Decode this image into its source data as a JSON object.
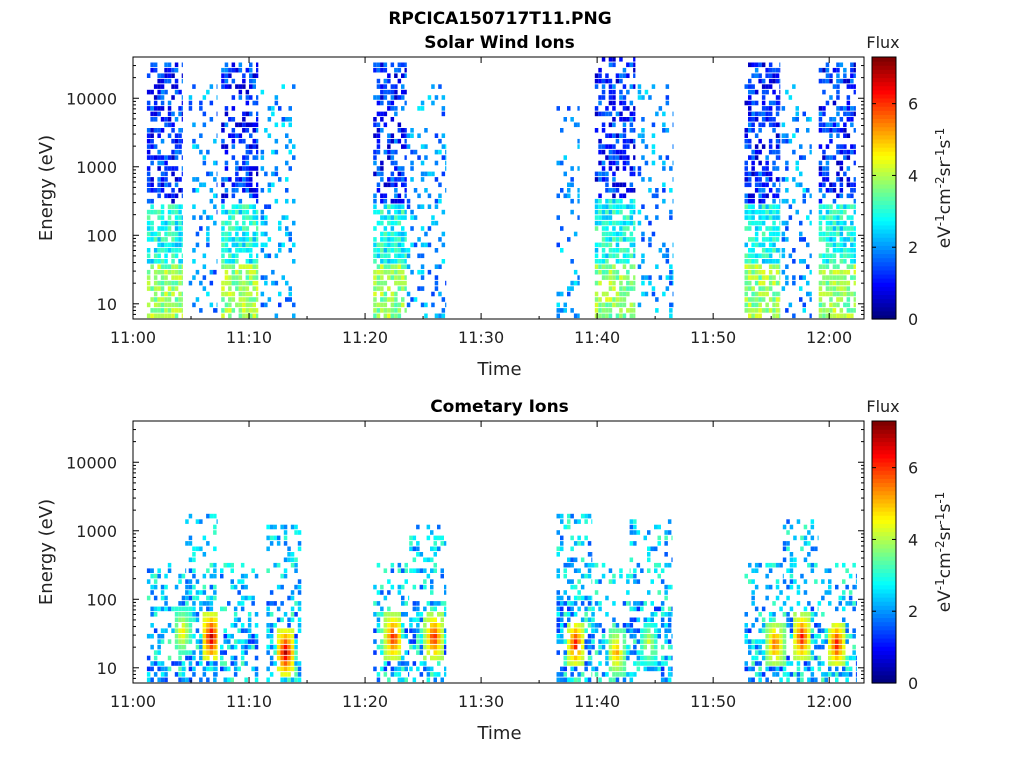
{
  "figure_title": "RPCICA150717T11.PNG",
  "chart_data": [
    {
      "type": "heatmap",
      "title": "Solar Wind Ions",
      "xlabel": "Time",
      "ylabel": "Energy (eV)",
      "y_scale": "log",
      "ylim": [
        6,
        40000
      ],
      "xlim": [
        "11:00",
        "12:03"
      ],
      "x_ticks": [
        "11:00",
        "11:10",
        "11:20",
        "11:30",
        "11:40",
        "11:50",
        "12:00"
      ],
      "y_ticks": [
        "10",
        "100",
        "1000",
        "10000"
      ],
      "colorbar": {
        "title": "Flux",
        "label": "eV-1cm-2sr-1s-1",
        "ticks": [
          "0",
          "2",
          "4",
          "6"
        ],
        "range": [
          0,
          7.3
        ]
      },
      "bursts": [
        {
          "start": "11:01.2",
          "end": "11:04.3",
          "emax": 30000
        },
        {
          "start": "11:04.8",
          "end": "11:07.2",
          "emax": 15000,
          "sparse": true
        },
        {
          "start": "11:07.6",
          "end": "11:10.8",
          "emax": 30000
        },
        {
          "start": "11:11.0",
          "end": "11:14.0",
          "emax": 15000,
          "sparse": true
        },
        {
          "start": "11:20.7",
          "end": "11:23.6",
          "emax": 30000
        },
        {
          "start": "11:23.6",
          "end": "11:27.0",
          "emax": 15000,
          "sparse": true
        },
        {
          "start": "11:36.5",
          "end": "11:38.5",
          "emax": 10000,
          "sparse": true
        },
        {
          "start": "11:39.8",
          "end": "11:43.3",
          "emax": 35000
        },
        {
          "start": "11:43.5",
          "end": "11:46.5",
          "emax": 15000,
          "sparse": true
        },
        {
          "start": "11:52.7",
          "end": "11:55.7",
          "emax": 30000
        },
        {
          "start": "11:55.9",
          "end": "11:58.5",
          "emax": 15000,
          "sparse": true
        },
        {
          "start": "11:59.1",
          "end": "12:02.3",
          "emax": 30000
        }
      ]
    },
    {
      "type": "heatmap",
      "title": "Cometary Ions",
      "xlabel": "Time",
      "ylabel": "Energy (eV)",
      "y_scale": "log",
      "ylim": [
        6,
        40000
      ],
      "xlim": [
        "11:00",
        "12:03"
      ],
      "x_ticks": [
        "11:00",
        "11:10",
        "11:20",
        "11:30",
        "11:40",
        "11:50",
        "12:00"
      ],
      "y_ticks": [
        "10",
        "100",
        "1000",
        "10000"
      ],
      "colorbar": {
        "title": "Flux",
        "label": "eV-1cm-2sr-1s-1",
        "ticks": [
          "0",
          "2",
          "4",
          "6"
        ],
        "range": [
          0,
          7.3
        ]
      },
      "bursts": [
        {
          "start": "11:01.2",
          "end": "11:04.5",
          "emax": 300
        },
        {
          "start": "11:04.5",
          "end": "11:07.3",
          "emax": 1500
        },
        {
          "start": "11:07.5",
          "end": "11:10.8",
          "emax": 300
        },
        {
          "start": "11:11.5",
          "end": "11:14.5",
          "emax": 1200
        },
        {
          "start": "11:20.7",
          "end": "11:23.8",
          "emax": 300
        },
        {
          "start": "11:23.8",
          "end": "11:27.0",
          "emax": 1200
        },
        {
          "start": "11:36.5",
          "end": "11:39.5",
          "emax": 1500
        },
        {
          "start": "11:39.5",
          "end": "11:42.8",
          "emax": 300
        },
        {
          "start": "11:42.8",
          "end": "11:46.5",
          "emax": 1300
        },
        {
          "start": "11:52.7",
          "end": "11:56.0",
          "emax": 300
        },
        {
          "start": "11:56.0",
          "end": "11:59.0",
          "emax": 1300
        },
        {
          "start": "11:59.0",
          "end": "12:02.3",
          "emax": 300
        }
      ],
      "hotspots": [
        {
          "time": "11:04.1",
          "energy": 30,
          "flux": 5
        },
        {
          "time": "11:06.6",
          "energy": 25,
          "flux": 7
        },
        {
          "time": "11:13.0",
          "energy": 15,
          "flux": 7
        },
        {
          "time": "11:22.3",
          "energy": 25,
          "flux": 6.5
        },
        {
          "time": "11:25.8",
          "energy": 25,
          "flux": 6.5
        },
        {
          "time": "11:38.0",
          "energy": 20,
          "flux": 6.5
        },
        {
          "time": "11:41.5",
          "energy": 15,
          "flux": 5.5
        },
        {
          "time": "11:44.3",
          "energy": 20,
          "flux": 4.5
        },
        {
          "time": "11:55.2",
          "energy": 20,
          "flux": 6
        },
        {
          "time": "11:57.5",
          "energy": 25,
          "flux": 6.5
        },
        {
          "time": "12:00.5",
          "energy": 20,
          "flux": 6.5
        }
      ]
    }
  ]
}
